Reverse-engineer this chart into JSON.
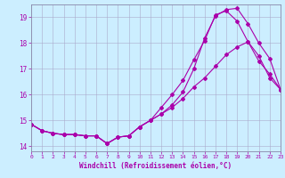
{
  "title": "",
  "xlabel": "Windchill (Refroidissement éolien,°C)",
  "ylabel": "",
  "bg_color": "#cceeff",
  "line_color": "#aa00aa",
  "grid_color": "#aaaacc",
  "xlim": [
    0,
    23
  ],
  "ylim": [
    13.8,
    19.5
  ],
  "yticks": [
    14,
    15,
    16,
    17,
    18,
    19
  ],
  "xticks": [
    0,
    1,
    2,
    3,
    4,
    5,
    6,
    7,
    8,
    9,
    10,
    11,
    12,
    13,
    14,
    15,
    16,
    17,
    18,
    19,
    20,
    21,
    22,
    23
  ],
  "line1_x": [
    0,
    1,
    2,
    3,
    4,
    5,
    6,
    7,
    8,
    9,
    10,
    11,
    12,
    13,
    14,
    15,
    16,
    17,
    18,
    19,
    20,
    21,
    22,
    23
  ],
  "line1_y": [
    14.85,
    14.6,
    14.5,
    14.45,
    14.45,
    14.4,
    14.4,
    14.1,
    14.35,
    14.4,
    14.75,
    15.0,
    15.25,
    15.5,
    15.85,
    16.3,
    16.65,
    17.1,
    17.55,
    17.85,
    18.05,
    17.5,
    16.65,
    16.2
  ],
  "line2_x": [
    0,
    1,
    2,
    3,
    4,
    5,
    6,
    7,
    8,
    9,
    10,
    11,
    12,
    13,
    14,
    15,
    16,
    17,
    18,
    19,
    20,
    21,
    22,
    23
  ],
  "line2_y": [
    14.85,
    14.6,
    14.5,
    14.45,
    14.45,
    14.4,
    14.4,
    14.1,
    14.35,
    14.4,
    14.75,
    15.0,
    15.5,
    16.0,
    16.55,
    17.35,
    18.1,
    19.1,
    19.25,
    18.85,
    18.05,
    17.3,
    16.8,
    16.2
  ],
  "line3_x": [
    0,
    1,
    2,
    3,
    4,
    5,
    6,
    7,
    8,
    9,
    10,
    11,
    12,
    13,
    14,
    15,
    16,
    17,
    18,
    19,
    20,
    21,
    22,
    23
  ],
  "line3_y": [
    14.85,
    14.6,
    14.5,
    14.45,
    14.45,
    14.4,
    14.4,
    14.1,
    14.35,
    14.4,
    14.75,
    15.0,
    15.25,
    15.6,
    16.1,
    17.0,
    18.2,
    19.05,
    19.3,
    19.35,
    18.75,
    18.0,
    17.4,
    16.2
  ]
}
